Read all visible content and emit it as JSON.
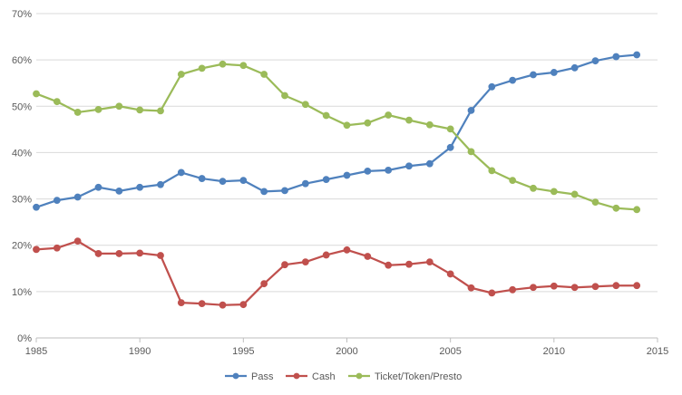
{
  "chart_data": {
    "type": "line",
    "title": "",
    "xlabel": "",
    "ylabel": "",
    "xlim": [
      1985,
      2015
    ],
    "ylim": [
      0,
      70
    ],
    "x_ticks": [
      1985,
      1990,
      1995,
      2000,
      2005,
      2010,
      2015
    ],
    "y_ticks": [
      0,
      10,
      20,
      30,
      40,
      50,
      60,
      70
    ],
    "y_tick_labels": [
      "0%",
      "10%",
      "20%",
      "30%",
      "40%",
      "50%",
      "60%",
      "70%"
    ],
    "grid": "horizontal",
    "legend_position": "bottom",
    "x": [
      1985,
      1986,
      1987,
      1988,
      1989,
      1990,
      1991,
      1992,
      1993,
      1994,
      1995,
      1996,
      1997,
      1998,
      1999,
      2000,
      2001,
      2002,
      2003,
      2004,
      2005,
      2006,
      2007,
      2008,
      2009,
      2010,
      2011,
      2012,
      2013,
      2014
    ],
    "series": [
      {
        "name": "Pass",
        "color": "#4f81bd",
        "values": [
          28.2,
          29.7,
          30.4,
          32.5,
          31.7,
          32.5,
          33.1,
          35.7,
          34.4,
          33.8,
          34.0,
          31.6,
          31.8,
          33.3,
          34.2,
          35.1,
          36.0,
          36.2,
          37.1,
          37.6,
          41.1,
          49.1,
          54.2,
          55.6,
          56.8,
          57.3,
          58.3,
          59.8,
          60.7,
          61.1
        ]
      },
      {
        "name": "Cash",
        "color": "#c0504d",
        "values": [
          19.1,
          19.4,
          20.9,
          18.2,
          18.2,
          18.3,
          17.8,
          7.6,
          7.4,
          7.1,
          7.2,
          11.7,
          15.8,
          16.4,
          17.9,
          19.0,
          17.6,
          15.7,
          15.9,
          16.4,
          13.8,
          10.8,
          9.7,
          10.4,
          10.9,
          11.2,
          10.9,
          11.1,
          11.3,
          11.3
        ]
      },
      {
        "name": "Ticket/Token/Presto",
        "color": "#9bbb59",
        "values": [
          52.7,
          51.0,
          48.7,
          49.3,
          50.0,
          49.2,
          49.0,
          56.9,
          58.2,
          59.1,
          58.8,
          56.9,
          52.3,
          50.4,
          48.0,
          45.9,
          46.4,
          48.1,
          47.0,
          46.0,
          45.1,
          40.2,
          36.1,
          34.0,
          32.3,
          31.6,
          31.0,
          29.3,
          28.0,
          27.7
        ]
      }
    ]
  }
}
